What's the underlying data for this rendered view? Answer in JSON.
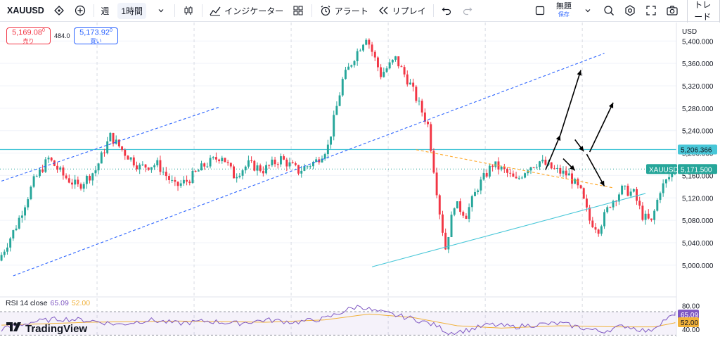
{
  "toolbar": {
    "symbol": "XAUUSD",
    "interval_week": "週",
    "interval_active": "1時間",
    "indicators_label": "インジケーター",
    "alert_label": "アラート",
    "replay_label": "リプレイ",
    "layout_name": "無題",
    "layout_status": "保存",
    "trade_label": "トレード",
    "icons": [
      "diamond-alert-icon",
      "plus-circle-icon",
      "chevron-down-icon",
      "candles-icon",
      "indicators-icon",
      "templates-icon",
      "alarm-clock-icon",
      "replay-icon",
      "undo-icon",
      "redo-icon",
      "square-icon",
      "quick-search-icon",
      "settings-icon",
      "fullscreen-icon",
      "camera-icon"
    ]
  },
  "quotes": {
    "sell_price": "5,169.08",
    "sell_price_sup": "0",
    "sell_label": "売り",
    "spread": "484.0",
    "buy_price": "5,173.92",
    "buy_price_sup": "0",
    "buy_label": "買い"
  },
  "colors": {
    "up": "#26a69a",
    "down": "#f23645",
    "channel": "#2962ff",
    "support": "#48c7d8",
    "resistance": "#ffa726",
    "rsi": "#7e57c2",
    "rsi_ma": "#f0b13a",
    "rsi_band": "#7e57c2"
  },
  "chart_data": {
    "type": "candlestick",
    "currency": "USD",
    "y_ticks": [
      "5,400.000",
      "5,360.000",
      "5,320.000",
      "5,280.000",
      "5,240.000",
      "5,200.000",
      "5,160.000",
      "5,120.000",
      "5,080.000",
      "5,040.000",
      "5,000.000"
    ],
    "y_tick_values": [
      5400,
      5360,
      5320,
      5280,
      5240,
      5200,
      5160,
      5120,
      5080,
      5040,
      5000
    ],
    "ylim": [
      4981,
      5433
    ],
    "grid": true,
    "price_labels": {
      "resistance": "5,206.366",
      "current_symbol": "XAUUSD",
      "current": "5,171.500"
    },
    "horizontal_level": 5206.4,
    "current_price": 5171.5,
    "bar_count": 230,
    "close_path": [
      [
        0,
        5008
      ],
      [
        6,
        5070
      ],
      [
        12,
        5150
      ],
      [
        17,
        5190
      ],
      [
        22,
        5160
      ],
      [
        27,
        5140
      ],
      [
        33,
        5170
      ],
      [
        38,
        5230
      ],
      [
        43,
        5200
      ],
      [
        48,
        5175
      ],
      [
        54,
        5180
      ],
      [
        60,
        5140
      ],
      [
        64,
        5150
      ],
      [
        70,
        5178
      ],
      [
        76,
        5196
      ],
      [
        80,
        5160
      ],
      [
        85,
        5180
      ],
      [
        90,
        5170
      ],
      [
        96,
        5190
      ],
      [
        102,
        5168
      ],
      [
        108,
        5186
      ],
      [
        112,
        5212
      ],
      [
        117,
        5330
      ],
      [
        121,
        5372
      ],
      [
        125,
        5409
      ],
      [
        130,
        5340
      ],
      [
        135,
        5368
      ],
      [
        140,
        5322
      ],
      [
        146,
        5250
      ],
      [
        150,
        5095
      ],
      [
        152,
        5030
      ],
      [
        155,
        5110
      ],
      [
        159,
        5090
      ],
      [
        163,
        5140
      ],
      [
        168,
        5180
      ],
      [
        172,
        5168
      ],
      [
        176,
        5150
      ],
      [
        180,
        5175
      ],
      [
        184,
        5185
      ],
      [
        189,
        5170
      ],
      [
        194,
        5160
      ],
      [
        198,
        5130
      ],
      [
        201,
        5080
      ],
      [
        204,
        5065
      ],
      [
        208,
        5110
      ],
      [
        212,
        5135
      ],
      [
        216,
        5128
      ],
      [
        219,
        5088
      ],
      [
        222,
        5076
      ],
      [
        225,
        5135
      ],
      [
        230,
        5171.5
      ]
    ],
    "lines": [
      {
        "name": "upper-channel",
        "points": [
          [
            0,
            5150
          ],
          [
            74,
            5282
          ]
        ]
      },
      {
        "name": "lower-channel",
        "points": [
          [
            4,
            4981
          ],
          [
            205,
            5378
          ]
        ]
      },
      {
        "name": "resistance-trendline",
        "points": [
          [
            141,
            5206
          ],
          [
            208,
            5138
          ]
        ]
      },
      {
        "name": "support-trendline",
        "points": [
          [
            126,
            4997
          ],
          [
            219,
            5128
          ]
        ]
      }
    ],
    "arrows": [
      [
        [
          185,
          5170
        ],
        [
          190,
          5232
        ]
      ],
      [
        [
          190,
          5232
        ],
        [
          197,
          5348
        ]
      ],
      [
        [
          195,
          5224
        ],
        [
          198,
          5203
        ]
      ],
      [
        [
          200,
          5202
        ],
        [
          208,
          5290
        ]
      ],
      [
        [
          191,
          5190
        ],
        [
          195,
          5169
        ]
      ],
      [
        [
          199,
          5198
        ],
        [
          205,
          5141
        ]
      ]
    ],
    "rsi": {
      "label": "RSI 14 close",
      "value": "65.09",
      "ma_value": "52.00",
      "ticks": [
        "80.00",
        "40.00"
      ],
      "tick_values": [
        80,
        40
      ],
      "upper": 70,
      "lower": 30,
      "ylim": [
        28,
        88
      ],
      "path": [
        [
          0,
          40
        ],
        [
          10,
          52
        ],
        [
          20,
          58
        ],
        [
          30,
          55
        ],
        [
          40,
          48
        ],
        [
          50,
          56
        ],
        [
          60,
          50
        ],
        [
          70,
          54
        ],
        [
          80,
          50
        ],
        [
          90,
          56
        ],
        [
          100,
          52
        ],
        [
          110,
          58
        ],
        [
          118,
          74
        ],
        [
          122,
          80
        ],
        [
          126,
          72
        ],
        [
          132,
          66
        ],
        [
          140,
          58
        ],
        [
          148,
          46
        ],
        [
          152,
          34
        ],
        [
          158,
          38
        ],
        [
          166,
          48
        ],
        [
          174,
          44
        ],
        [
          182,
          48
        ],
        [
          190,
          50
        ],
        [
          196,
          44
        ],
        [
          204,
          36
        ],
        [
          212,
          46
        ],
        [
          220,
          36
        ],
        [
          226,
          58
        ],
        [
          230,
          65.09
        ]
      ],
      "ma_path": [
        [
          0,
          47
        ],
        [
          30,
          52
        ],
        [
          60,
          54
        ],
        [
          90,
          52
        ],
        [
          110,
          56
        ],
        [
          125,
          66
        ],
        [
          140,
          60
        ],
        [
          155,
          46
        ],
        [
          170,
          42
        ],
        [
          190,
          46
        ],
        [
          210,
          44
        ],
        [
          222,
          44
        ],
        [
          230,
          52
        ]
      ]
    }
  },
  "branding": {
    "logo_text": "TradingView"
  }
}
